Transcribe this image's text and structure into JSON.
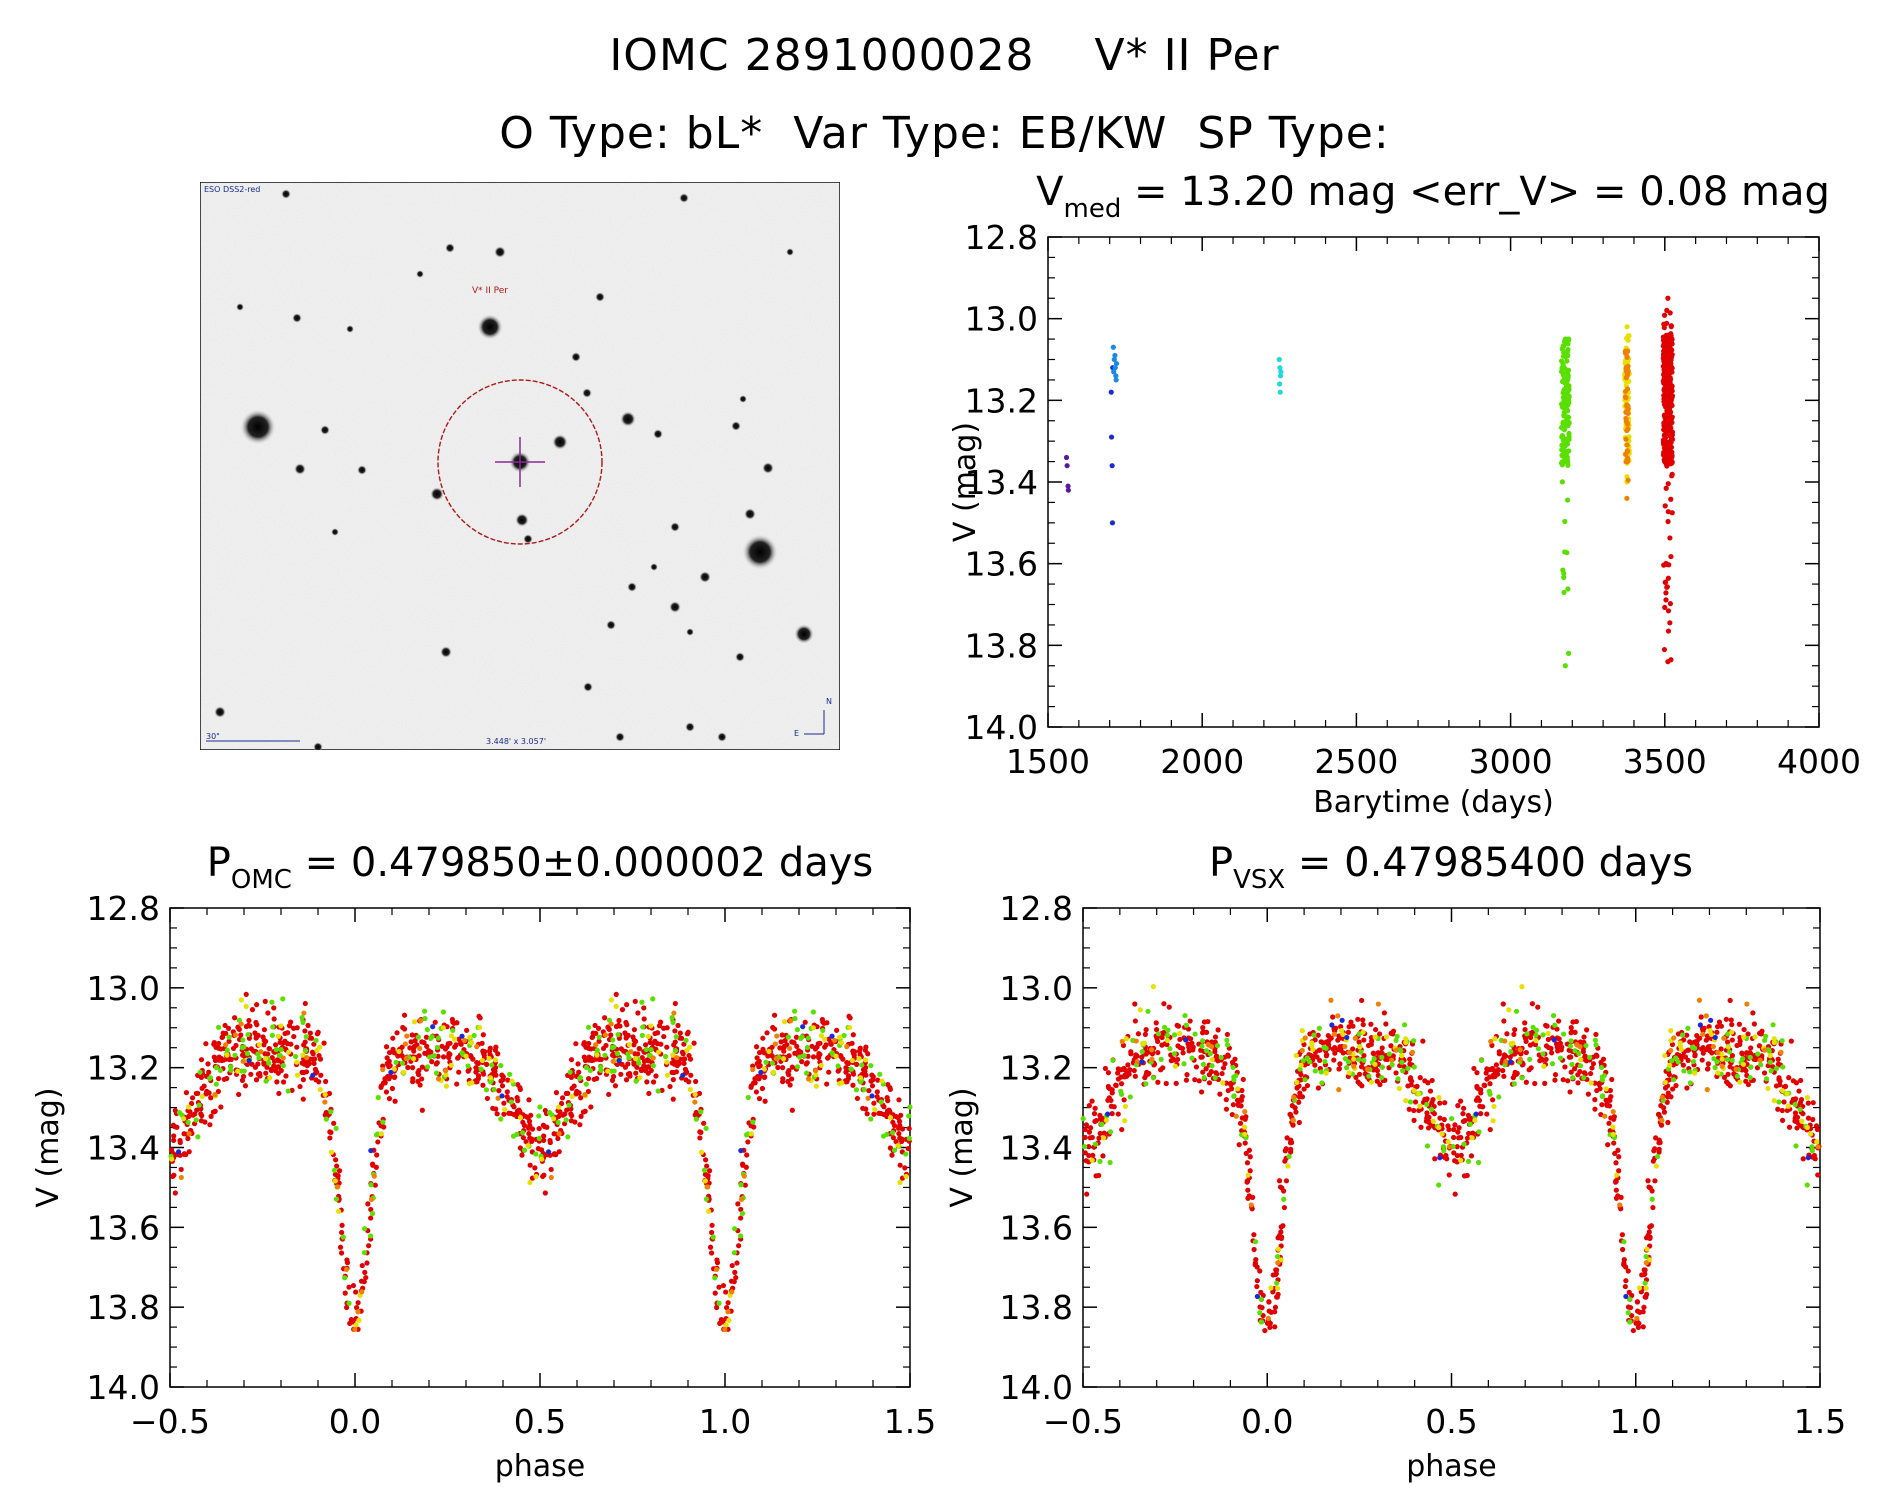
{
  "header": {
    "line1": "IOMC 2891000028    V* II Per",
    "line2": "O Type: bL*  Var Type: EB/KW  SP Type:"
  },
  "finder_chart": {
    "survey_label": "ESO DSS2-red",
    "target_label": "V* II Per",
    "scale_label": "30\"",
    "fov_label": "3.448' x 3.057'",
    "north_label": "N",
    "east_label": "E",
    "circle_color": "#b01818",
    "cross_color": "#8a2a9a"
  },
  "chart_data": [
    {
      "id": "lightcurve",
      "type": "scatter",
      "title_prefix": "V",
      "title_sub": "med",
      "title_rest": " = 13.20 mag <err_V> = 0.08 mag",
      "xlabel": "Barytime (days)",
      "ylabel": "V (mag)",
      "xlim": [
        1500,
        4000
      ],
      "ylim": [
        14.0,
        12.8
      ],
      "xticks": [
        1500,
        2000,
        2500,
        3000,
        3500,
        4000
      ],
      "yticks": [
        12.8,
        13.0,
        13.2,
        13.4,
        13.6,
        13.8,
        14.0
      ],
      "xtick_labels": [
        "1500",
        "2000",
        "2500",
        "3000",
        "3500",
        "4000"
      ],
      "ytick_labels": [
        "12.8",
        "13.0",
        "13.2",
        "13.4",
        "13.6",
        "13.8",
        "14.0"
      ],
      "series": [
        {
          "name": "s1",
          "color": "#5a1a9a",
          "x": [
            1560,
            1562,
            1565,
            1566
          ],
          "y": [
            13.34,
            13.36,
            13.41,
            13.42
          ]
        },
        {
          "name": "s2",
          "color": "#1a2ad8",
          "x": [
            1705,
            1706,
            1708,
            1709,
            1710
          ],
          "y": [
            13.18,
            13.29,
            13.36,
            13.5,
            13.12
          ]
        },
        {
          "name": "s3",
          "color": "#1a8ae8",
          "x": [
            1712,
            1715,
            1718,
            1720,
            1722,
            1713,
            1717,
            1721
          ],
          "y": [
            13.07,
            13.1,
            13.12,
            13.14,
            13.11,
            13.13,
            13.09,
            13.15
          ]
        },
        {
          "name": "s4",
          "color": "#22d8e0",
          "x": [
            2250,
            2252,
            2254,
            2251,
            2253,
            2255
          ],
          "y": [
            13.1,
            13.12,
            13.14,
            13.16,
            13.18,
            13.13
          ]
        },
        {
          "name": "s5",
          "color": "#5ae000",
          "xrange": [
            3165,
            3190
          ],
          "ymin": 13.05,
          "ymax": 13.85,
          "n": 150
        },
        {
          "name": "s6",
          "color": "#e8e000",
          "xrange": [
            3370,
            3385
          ],
          "ymin": 13.02,
          "ymax": 13.4,
          "n": 70
        },
        {
          "name": "s7",
          "color": "#f08000",
          "xrange": [
            3372,
            3382
          ],
          "ymin": 13.08,
          "ymax": 13.44,
          "n": 50
        },
        {
          "name": "s8",
          "color": "#e00000",
          "xrange": [
            3495,
            3525
          ],
          "ymin": 12.95,
          "ymax": 13.84,
          "n": 320
        }
      ]
    },
    {
      "id": "phase_omc",
      "type": "scatter",
      "title_prefix": "P",
      "title_sub": "OMC",
      "title_rest": " = 0.479850±0.000002 days",
      "xlabel": "phase",
      "ylabel": "V (mag)",
      "xlim": [
        -0.5,
        1.5
      ],
      "ylim": [
        14.0,
        12.8
      ],
      "xticks": [
        -0.5,
        0.0,
        0.5,
        1.0,
        1.5
      ],
      "yticks": [
        12.8,
        13.0,
        13.2,
        13.4,
        13.6,
        13.8,
        14.0
      ],
      "xtick_labels": [
        "−0.5",
        "0.0",
        "0.5",
        "1.0",
        "1.5"
      ],
      "ytick_labels": [
        "12.8",
        "13.0",
        "13.2",
        "13.4",
        "13.6",
        "13.8",
        "14.0"
      ],
      "curve": {
        "base_max": 13.15,
        "primary_min": 13.82,
        "secondary_min": 13.37,
        "scatter": 0.08
      },
      "series": [
        {
          "name": "red",
          "color": "#e00000",
          "n": 620
        },
        {
          "name": "green",
          "color": "#5ae000",
          "n": 120
        },
        {
          "name": "yellow",
          "color": "#e8e000",
          "n": 60
        },
        {
          "name": "orange",
          "color": "#f08000",
          "n": 30
        },
        {
          "name": "blue",
          "color": "#1a2ad8",
          "n": 8
        }
      ]
    },
    {
      "id": "phase_vsx",
      "type": "scatter",
      "title_prefix": "P",
      "title_sub": "VSX",
      "title_rest": " = 0.47985400 days",
      "xlabel": "phase",
      "ylabel": "V (mag)",
      "xlim": [
        -0.5,
        1.5
      ],
      "ylim": [
        14.0,
        12.8
      ],
      "xticks": [
        -0.5,
        0.0,
        0.5,
        1.0,
        1.5
      ],
      "yticks": [
        12.8,
        13.0,
        13.2,
        13.4,
        13.6,
        13.8,
        14.0
      ],
      "xtick_labels": [
        "−0.5",
        "0.0",
        "0.5",
        "1.0",
        "1.5"
      ],
      "ytick_labels": [
        "12.8",
        "13.0",
        "13.2",
        "13.4",
        "13.6",
        "13.8",
        "14.0"
      ],
      "curve": {
        "base_max": 13.15,
        "primary_min": 13.82,
        "secondary_min": 13.37,
        "scatter": 0.08
      },
      "series": [
        {
          "name": "red",
          "color": "#e00000",
          "n": 620
        },
        {
          "name": "green",
          "color": "#5ae000",
          "n": 120
        },
        {
          "name": "yellow",
          "color": "#e8e000",
          "n": 60
        },
        {
          "name": "orange",
          "color": "#f08000",
          "n": 30
        },
        {
          "name": "blue",
          "color": "#1a2ad8",
          "n": 8
        }
      ]
    }
  ]
}
